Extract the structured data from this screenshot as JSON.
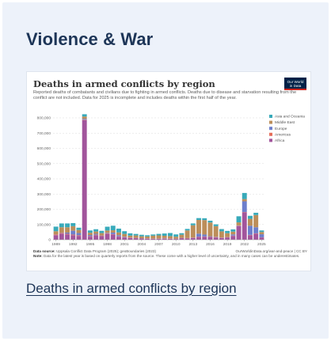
{
  "section": {
    "heading": "Violence & War",
    "link_text": "Deaths in armed conflicts by region"
  },
  "figure": {
    "logo_line1": "Our World",
    "logo_line2": "in Data",
    "source_label": "Data source:",
    "source_text": "Uppsala Conflict Data Program (2025); geoBoundaries (2023)",
    "url_text": "OurWorldinData.org/war-and-peace | CC BY",
    "note_label": "Note:",
    "note_text": "Data for the latest year is based on quarterly reports from the source. These come with a higher level of uncertainty, and in many cases can be underestimates."
  },
  "chart_data": {
    "type": "bar",
    "stacked": true,
    "title": "Deaths in armed conflicts by region",
    "subtitle": "Reported deaths of combatants and civilians due to fighting in armed conflicts. Deaths due to disease and starvation resulting from the conflict are not included. Data for 2025 is incomplete and includes deaths within the first half of the year.",
    "x_tick_labels": [
      "1989",
      "1992",
      "1995",
      "1998",
      "2001",
      "2004",
      "2007",
      "2010",
      "2013",
      "2016",
      "2019",
      "2022",
      "2025"
    ],
    "y_tick_labels": [
      "0",
      "100,000",
      "200,000",
      "300,000",
      "400,000",
      "500,000",
      "600,000",
      "700,000",
      "800,000"
    ],
    "ylim": [
      0,
      800000
    ],
    "legend_position": "right",
    "categories": [
      1989,
      1990,
      1991,
      1992,
      1993,
      1994,
      1995,
      1996,
      1997,
      1998,
      1999,
      2000,
      2001,
      2002,
      2003,
      2004,
      2005,
      2006,
      2007,
      2008,
      2009,
      2010,
      2011,
      2012,
      2013,
      2014,
      2015,
      2016,
      2017,
      2018,
      2019,
      2020,
      2021,
      2022,
      2023,
      2024,
      2025
    ],
    "series": [
      {
        "name": "Africa",
        "color": "#a2559c",
        "values": [
          30000,
          40000,
          35000,
          30000,
          25000,
          785000,
          20000,
          30000,
          25000,
          40000,
          35000,
          20000,
          15000,
          12000,
          10000,
          8000,
          7000,
          6000,
          6000,
          7000,
          6000,
          5000,
          10000,
          8000,
          12000,
          18000,
          20000,
          18000,
          15000,
          12000,
          15000,
          25000,
          90000,
          180000,
          30000,
          40000,
          15000
        ]
      },
      {
        "name": "Americas",
        "color": "#e56e5a",
        "values": [
          5000,
          5000,
          4000,
          4000,
          4000,
          3000,
          3000,
          3000,
          2500,
          2500,
          2000,
          2000,
          2000,
          2000,
          2000,
          1500,
          1500,
          1500,
          1500,
          2000,
          2000,
          2000,
          2000,
          2000,
          2000,
          2000,
          2000,
          2000,
          2000,
          2000,
          2000,
          2000,
          2000,
          2000,
          2000,
          2000,
          1000
        ]
      },
      {
        "name": "Europe",
        "color": "#6d7fcc",
        "values": [
          1000,
          2000,
          8000,
          25000,
          15000,
          6000,
          8000,
          6000,
          1000,
          3000,
          10000,
          8000,
          3000,
          1000,
          1000,
          1000,
          1000,
          1000,
          1000,
          2000,
          1000,
          1000,
          1000,
          1000,
          1000,
          20000,
          12000,
          3000,
          2000,
          1000,
          1000,
          8000,
          2000,
          70000,
          60000,
          40000,
          20000
        ]
      },
      {
        "name": "Middle East",
        "color": "#bc8e5a",
        "values": [
          20000,
          35000,
          35000,
          30000,
          20000,
          15000,
          15000,
          15000,
          15000,
          15000,
          15000,
          18000,
          18000,
          12000,
          15000,
          12000,
          12000,
          18000,
          20000,
          15000,
          15000,
          12000,
          20000,
          50000,
          80000,
          90000,
          95000,
          90000,
          70000,
          40000,
          25000,
          18000,
          20000,
          15000,
          45000,
          80000,
          15000
        ]
      },
      {
        "name": "Asia and Oceania",
        "color": "#38aaba",
        "values": [
          30000,
          25000,
          25000,
          20000,
          15000,
          15000,
          15000,
          15000,
          15000,
          25000,
          30000,
          25000,
          18000,
          15000,
          10000,
          10000,
          8000,
          8000,
          10000,
          15000,
          20000,
          15000,
          10000,
          10000,
          12000,
          12000,
          12000,
          12000,
          12000,
          15000,
          15000,
          15000,
          40000,
          40000,
          20000,
          15000,
          10000
        ]
      }
    ]
  }
}
